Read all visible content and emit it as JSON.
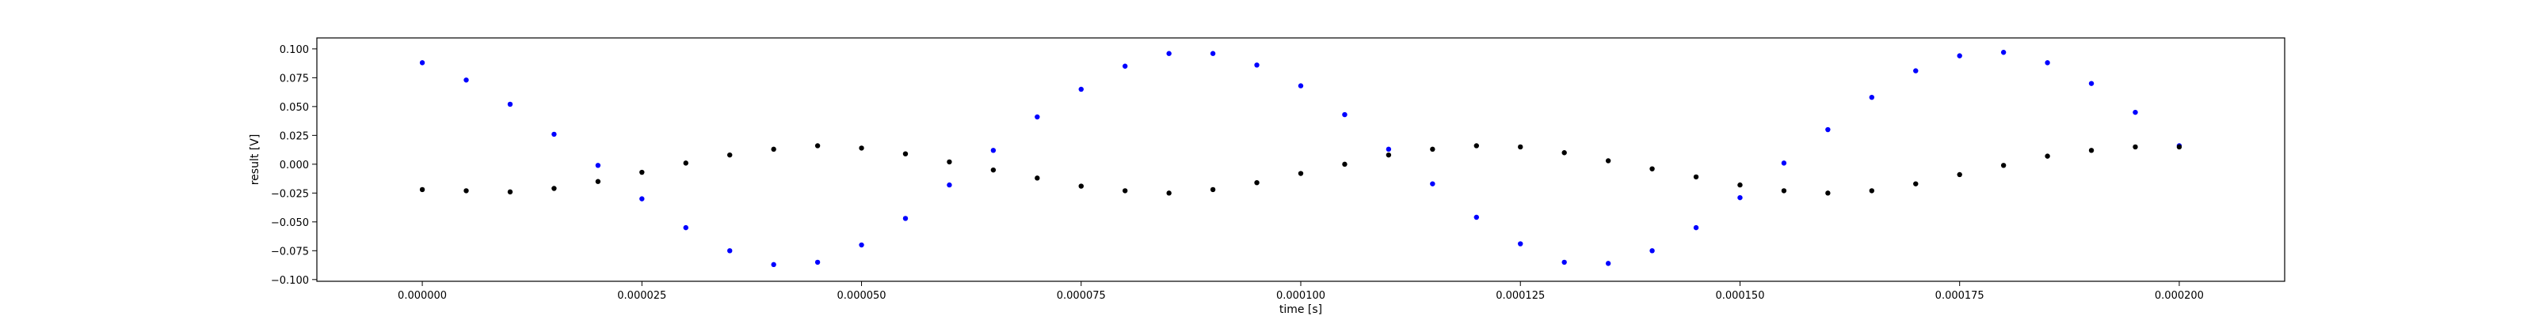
{
  "chart_data": {
    "type": "scatter",
    "xlabel": "time [s]",
    "ylabel": "result [V]",
    "xlim": [
      -1.2e-05,
      0.000212
    ],
    "ylim": [
      -0.1015,
      0.1095
    ],
    "grid": false,
    "xticks": [
      0.0,
      2.5e-05,
      5e-05,
      7.5e-05,
      0.0001,
      0.000125,
      0.00015,
      0.000175,
      0.0002
    ],
    "xtick_labels": [
      "0.000000",
      "0.000025",
      "0.000050",
      "0.000075",
      "0.000100",
      "0.000125",
      "0.000150",
      "0.000175",
      "0.000200"
    ],
    "yticks": [
      -0.1,
      -0.075,
      -0.05,
      -0.025,
      0.0,
      0.025,
      0.05,
      0.075,
      0.1
    ],
    "ytick_labels": [
      "−0.100",
      "−0.075",
      "−0.050",
      "−0.025",
      "0.000",
      "0.025",
      "0.050",
      "0.075",
      "0.100"
    ],
    "series": [
      {
        "color": "#0000ff",
        "marker": "dot",
        "x": [
          0.0,
          5e-06,
          1e-05,
          1.5e-05,
          2e-05,
          2.5e-05,
          3e-05,
          3.5e-05,
          4e-05,
          4.5e-05,
          5e-05,
          5.5e-05,
          6e-05,
          6.5e-05,
          7e-05,
          7.5e-05,
          8e-05,
          8.5e-05,
          9e-05,
          9.5e-05,
          0.0001,
          0.000105,
          0.00011,
          0.000115,
          0.00012,
          0.000125,
          0.00013,
          0.000135,
          0.00014,
          0.000145,
          0.00015,
          0.000155,
          0.00016,
          0.000165,
          0.00017,
          0.000175,
          0.00018,
          0.000185,
          0.00019,
          0.000195,
          0.0002
        ],
        "y": [
          0.088,
          0.073,
          0.052,
          0.026,
          -0.001,
          -0.03,
          -0.055,
          -0.075,
          -0.087,
          -0.085,
          -0.07,
          -0.047,
          -0.018,
          0.012,
          0.041,
          0.065,
          0.085,
          0.096,
          0.096,
          0.086,
          0.068,
          0.043,
          0.013,
          -0.017,
          -0.046,
          -0.069,
          -0.085,
          -0.086,
          -0.075,
          -0.055,
          -0.029,
          0.001,
          0.03,
          0.058,
          0.081,
          0.094,
          0.097,
          0.088,
          0.07,
          0.045,
          0.016
        ]
      },
      {
        "color": "#000000",
        "marker": "dot",
        "x": [
          0.0,
          5e-06,
          1e-05,
          1.5e-05,
          2e-05,
          2.5e-05,
          3e-05,
          3.5e-05,
          4e-05,
          4.5e-05,
          5e-05,
          5.5e-05,
          6e-05,
          6.5e-05,
          7e-05,
          7.5e-05,
          8e-05,
          8.5e-05,
          9e-05,
          9.5e-05,
          0.0001,
          0.000105,
          0.00011,
          0.000115,
          0.00012,
          0.000125,
          0.00013,
          0.000135,
          0.00014,
          0.000145,
          0.00015,
          0.000155,
          0.00016,
          0.000165,
          0.00017,
          0.000175,
          0.00018,
          0.000185,
          0.00019,
          0.000195,
          0.0002
        ],
        "y": [
          -0.022,
          -0.023,
          -0.024,
          -0.021,
          -0.015,
          -0.007,
          0.001,
          0.008,
          0.013,
          0.016,
          0.014,
          0.009,
          0.002,
          -0.005,
          -0.012,
          -0.019,
          -0.023,
          -0.025,
          -0.022,
          -0.016,
          -0.008,
          0.0,
          0.008,
          0.013,
          0.016,
          0.015,
          0.01,
          0.003,
          -0.004,
          -0.011,
          -0.018,
          -0.023,
          -0.025,
          -0.023,
          -0.017,
          -0.009,
          -0.001,
          0.007,
          0.012,
          0.015,
          0.015
        ]
      }
    ]
  }
}
